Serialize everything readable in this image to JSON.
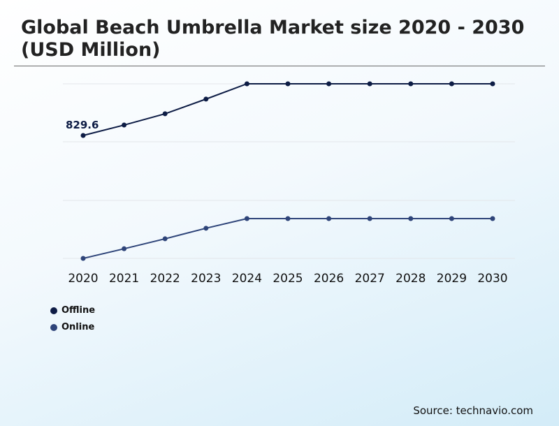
{
  "chart_data": {
    "type": "line",
    "title": "Global Beach Umbrella Market size 2020 - 2030 (USD Million)",
    "categories": [
      "2020",
      "2021",
      "2022",
      "2023",
      "2024",
      "2025",
      "2026",
      "2027",
      "2028",
      "2029",
      "2030"
    ],
    "series": [
      {
        "name": "Offline",
        "color": "#0d1c45",
        "values": [
          829.6,
          900,
          976,
          1075,
          1178,
          1178,
          1178,
          1178,
          1178,
          1178,
          1178
        ]
      },
      {
        "name": "Online",
        "color": "#2e4479",
        "values": [
          400,
          465,
          532,
          603,
          668,
          668,
          668,
          668,
          668,
          668,
          668
        ]
      }
    ],
    "data_labels": [
      {
        "series": "Offline",
        "category": "2020",
        "text": "829.6"
      }
    ],
    "grid": true,
    "legend_placement": "bottom-left",
    "source": "Source: technavio.com"
  }
}
